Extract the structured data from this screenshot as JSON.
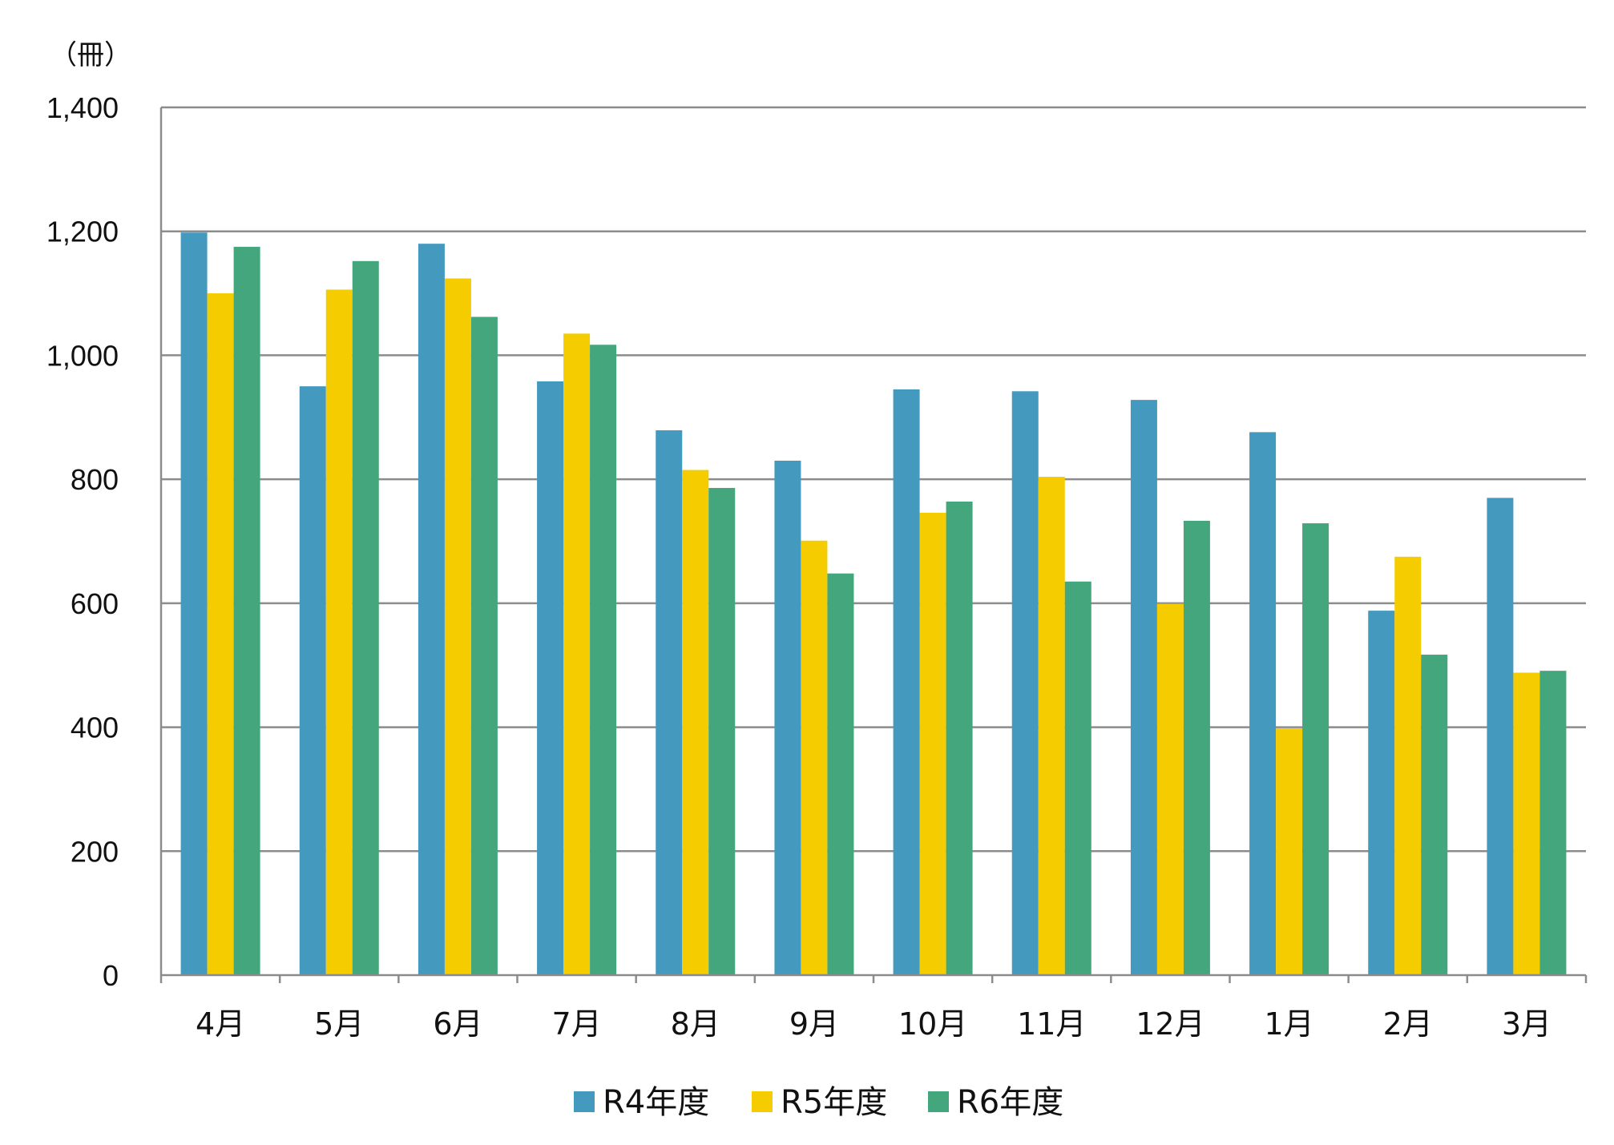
{
  "chart_data": {
    "type": "bar",
    "title": "",
    "xlabel": "",
    "ylabel": "",
    "unit_label": "（冊）",
    "categories": [
      "4月",
      "5月",
      "6月",
      "7月",
      "8月",
      "9月",
      "10月",
      "11月",
      "12月",
      "1月",
      "2月",
      "3月"
    ],
    "series": [
      {
        "name": "R4年度",
        "color": "#4499bf",
        "values": [
          1198,
          950,
          1180,
          958,
          879,
          830,
          945,
          942,
          928,
          876,
          588,
          770
        ]
      },
      {
        "name": "R5年度",
        "color": "#f5cc00",
        "values": [
          1100,
          1106,
          1124,
          1035,
          815,
          701,
          746,
          804,
          599,
          398,
          675,
          488
        ]
      },
      {
        "name": "R6年度",
        "color": "#43a67c",
        "values": [
          1175,
          1152,
          1062,
          1017,
          786,
          648,
          764,
          635,
          733,
          729,
          517,
          491
        ]
      }
    ],
    "ylim": [
      0,
      1400
    ],
    "yticks": [
      0,
      200,
      400,
      600,
      800,
      1000,
      1200,
      1400
    ],
    "ytick_labels": [
      "0",
      "200",
      "400",
      "600",
      "800",
      "1,000",
      "1,200",
      "1,400"
    ],
    "grid": true,
    "legend_position": "bottom"
  }
}
